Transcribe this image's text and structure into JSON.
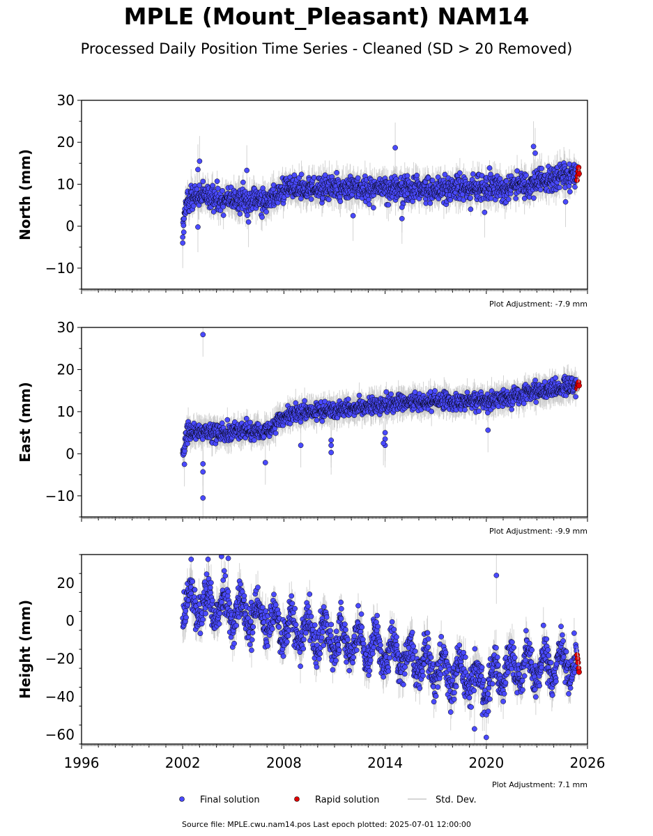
{
  "title": "MPLE (Mount_Pleasant) NAM14",
  "subtitle": "Processed Daily Position Time Series - Cleaned (SD > 20 Removed)",
  "legend": {
    "final_label": "Final solution",
    "rapid_label": "Rapid solution",
    "std_label": "Std. Dev."
  },
  "source_text": "Source file: MPLE.cwu.nam14.pos  Last epoch plotted: 2025-07-01 12:00:00",
  "colors": {
    "final": "#4a4aff",
    "rapid": "#e00000",
    "std": "#c8c8c8",
    "edge": "#000000"
  },
  "chart_data": [
    {
      "type": "scatter",
      "ylabel": "North (mm)",
      "xlim": [
        1996,
        2026
      ],
      "ylim": [
        -15,
        30
      ],
      "yticks": [
        -10,
        0,
        10,
        20,
        30
      ],
      "ytick_labels": [
        "−10",
        "0",
        "10",
        "20",
        "30"
      ],
      "adjustment": "Plot Adjustment: -7.9 mm",
      "data_start": 2002.0,
      "data_end": 2025.5,
      "trend": [
        [
          2002.0,
          -1.0
        ],
        [
          2002.3,
          7.0
        ],
        [
          2007.0,
          6.0
        ],
        [
          2008.0,
          9.0
        ],
        [
          2021.0,
          9.0
        ],
        [
          2025.5,
          12.5
        ]
      ],
      "scatter_sd": 1.5,
      "std_range": [
        1.5,
        4
      ],
      "rapid_values": [
        11,
        12,
        13,
        14,
        12.5
      ],
      "outliers": [
        [
          2002.0,
          -4
        ],
        [
          2002.9,
          13.5
        ],
        [
          2003.0,
          15.5
        ],
        [
          2002.9,
          -0.2
        ],
        [
          2005.8,
          13.3
        ],
        [
          2005.9,
          1
        ],
        [
          2014.6,
          18.7
        ],
        [
          2015.0,
          1.8
        ],
        [
          2015.0,
          4.5
        ],
        [
          2012.1,
          2.5
        ],
        [
          2019.9,
          3.3
        ],
        [
          2022.8,
          19
        ],
        [
          2022.9,
          17.4
        ],
        [
          2024.7,
          5.8
        ]
      ]
    },
    {
      "type": "scatter",
      "ylabel": "East (mm)",
      "xlim": [
        1996,
        2026
      ],
      "ylim": [
        -15,
        30
      ],
      "yticks": [
        -10,
        0,
        10,
        20,
        30
      ],
      "ytick_labels": [
        "−10",
        "0",
        "10",
        "20",
        "30"
      ],
      "adjustment": "Plot Adjustment: -9.9 mm",
      "data_start": 2002.0,
      "data_end": 2025.5,
      "trend": [
        [
          2002.0,
          0.0
        ],
        [
          2002.3,
          5.0
        ],
        [
          2007.0,
          5.5
        ],
        [
          2008.0,
          9.0
        ],
        [
          2010.0,
          10.0
        ],
        [
          2013.0,
          11.5
        ],
        [
          2016.0,
          12.5
        ],
        [
          2020.0,
          12.5
        ],
        [
          2025.5,
          16.5
        ]
      ],
      "scatter_sd": 1.0,
      "std_range": [
        1.5,
        3.5
      ],
      "rapid_values": [
        15.5,
        16,
        16.5,
        17,
        16.2
      ],
      "outliers": [
        [
          2003.2,
          28.3
        ],
        [
          2003.2,
          -10.5
        ],
        [
          2003.2,
          -4.3
        ],
        [
          2003.2,
          -2.4
        ],
        [
          2002.1,
          -2.5
        ],
        [
          2006.9,
          -2.1
        ],
        [
          2010.8,
          0.3
        ],
        [
          2010.8,
          2
        ],
        [
          2010.8,
          3.2
        ],
        [
          2014.0,
          2
        ],
        [
          2014.0,
          5
        ],
        [
          2014.0,
          3.5
        ],
        [
          2013.9,
          2.5
        ],
        [
          2009.0,
          2
        ],
        [
          2020.1,
          5.6
        ]
      ]
    },
    {
      "type": "scatter",
      "ylabel": "Height (mm)",
      "xlim": [
        1996,
        2026
      ],
      "ylim": [
        -65,
        35
      ],
      "yticks": [
        -60,
        -40,
        -20,
        0,
        20
      ],
      "ytick_labels": [
        "−60",
        "−40",
        "−20",
        "0",
        "20"
      ],
      "xticks": [
        1996,
        2002,
        2008,
        2014,
        2020,
        2026
      ],
      "xtick_labels": [
        "1996",
        "2002",
        "2008",
        "2014",
        "2020",
        "2026"
      ],
      "adjustment": "Plot Adjustment: 7.1 mm",
      "data_start": 2002.0,
      "data_end": 2025.5,
      "trend": [
        [
          2002.0,
          10.0
        ],
        [
          2004.0,
          8.0
        ],
        [
          2008.0,
          -3.0
        ],
        [
          2014.0,
          -15.0
        ],
        [
          2019.5,
          -32.0
        ],
        [
          2020.5,
          -32.0
        ],
        [
          2021.0,
          -26.0
        ],
        [
          2025.5,
          -22.0
        ]
      ],
      "seasonal_amp": 8,
      "scatter_sd": 5.0,
      "std_range": [
        4,
        10
      ],
      "rapid_values": [
        -18,
        -20,
        -22,
        -25,
        -27
      ],
      "outliers": [
        [
          2020.6,
          24
        ],
        [
          2019.3,
          -57
        ],
        [
          2020.0,
          -61.5
        ],
        [
          2004.3,
          34
        ],
        [
          2004.7,
          33
        ],
        [
          2003.5,
          32.5
        ],
        [
          2002.5,
          32.5
        ]
      ]
    }
  ]
}
